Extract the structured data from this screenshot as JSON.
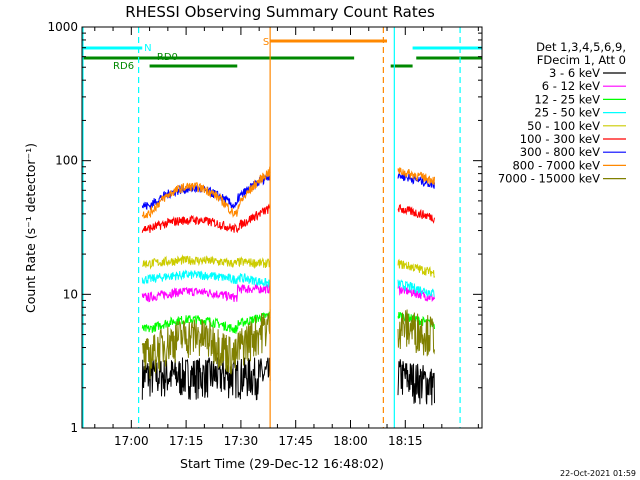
{
  "chart_data": {
    "type": "line",
    "title": "RHESSI Observing Summary Count Rates",
    "xlabel": "Start Time (29-Dec-12 16:48:02)",
    "ylabel": "Count Rate (s⁻¹ detector⁻¹)",
    "yscale": "log",
    "ylim": [
      1,
      1000
    ],
    "xlim_minutes": [
      -13.5,
      96
    ],
    "x_tick_labels": [
      "17:00",
      "17:15",
      "17:30",
      "17:45",
      "18:00",
      "18:15"
    ],
    "x_ticks_minutes": [
      0,
      15,
      30,
      45,
      60,
      75
    ],
    "y_tick_labels": [
      "1",
      "10",
      "100",
      "1000"
    ],
    "y_ticks": [
      1,
      10,
      100,
      1000
    ],
    "legend_header": [
      "Det 1,3,4,5,6,9,",
      "FDecim 1, Att 0"
    ],
    "series": [
      {
        "name": "3 - 6 keV",
        "color": "#000000",
        "levels": [
          2.5,
          2.5,
          2.5,
          2.5
        ]
      },
      {
        "name": "6 - 12 keV",
        "color": "#ff00ff",
        "levels": [
          9.5,
          10.5,
          11,
          11
        ]
      },
      {
        "name": "12 - 25 keV",
        "color": "#00ff00",
        "levels": [
          5.5,
          6.5,
          6,
          7
        ]
      },
      {
        "name": "25 - 50 keV",
        "color": "#00ffff",
        "levels": [
          13,
          14,
          13.5,
          12
        ]
      },
      {
        "name": "50 - 100 keV",
        "color": "#cccc00",
        "levels": [
          17,
          18,
          17.5,
          17
        ]
      },
      {
        "name": "100 - 300 keV",
        "color": "#ff0000",
        "levels": [
          31,
          36,
          32,
          44
        ]
      },
      {
        "name": "300 - 800 keV",
        "color": "#0000ff",
        "levels": [
          46,
          62,
          52,
          78
        ]
      },
      {
        "name": "800 - 7000 keV",
        "color": "#ff8800",
        "levels": [
          40,
          64,
          45,
          84
        ]
      },
      {
        "name": "7000 - 15000 keV",
        "color": "#808000",
        "levels": [
          3.5,
          5,
          4,
          6
        ]
      }
    ],
    "segments_minutes": [
      [
        3,
        15,
        29,
        38
      ],
      [
        73,
        77,
        82,
        83
      ]
    ],
    "flag_bars": [
      {
        "label": "N",
        "color": "#00ffff"
      },
      {
        "label": "RD0",
        "color": "#008800"
      },
      {
        "label": "RD6",
        "color": "#008800"
      },
      {
        "label": "S",
        "color": "#ff8800"
      }
    ],
    "grid": false,
    "legend_position": "right"
  },
  "footer_date": "22-Oct-2021 01:59"
}
